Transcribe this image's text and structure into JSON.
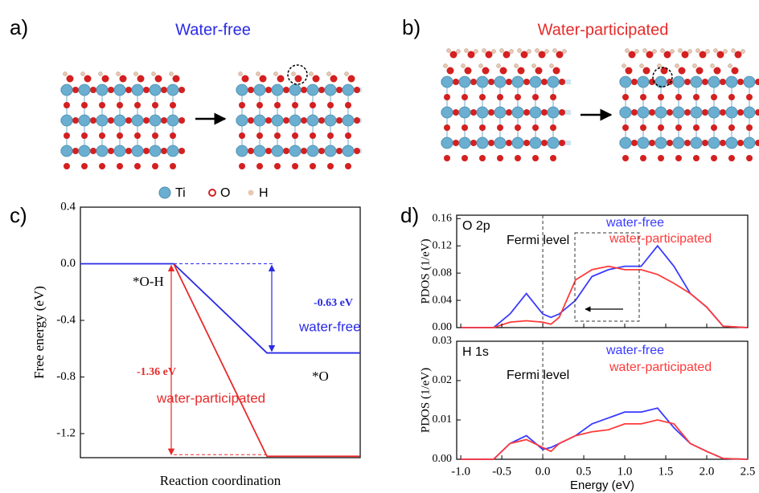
{
  "figure": {
    "panel_labels": [
      "a)",
      "b)",
      "c)",
      "d)"
    ],
    "structures": [
      {
        "title": "Water-free",
        "color": "#2a2ae6"
      },
      {
        "title": "Water-participated",
        "color": "#e62a2a"
      }
    ],
    "atom_legend": [
      {
        "label": "Ti",
        "color": "#6aaed0"
      },
      {
        "label": "O",
        "color": "#d42020"
      },
      {
        "label": "H",
        "color": "#e8c8b0"
      }
    ]
  },
  "chart_data": [
    {
      "type": "line",
      "xlabel": "Reaction coordination",
      "ylabel": "Free energy (eV)",
      "x": [
        0,
        1,
        2,
        3
      ],
      "xlim": [
        0,
        3
      ],
      "ylim": [
        -1.37,
        0.4
      ],
      "yticks": [
        0.4,
        {
          "value": 0,
          "label": "0.0"
        },
        -0.4,
        -0.8,
        -1.2
      ],
      "series": [
        {
          "name": "water-free",
          "color": "#2a2ae6",
          "values": [
            0,
            0,
            -0.63,
            -0.63
          ]
        },
        {
          "name": "water-participated",
          "color": "#e62a2a",
          "values": [
            null,
            0,
            -1.36,
            -1.36
          ]
        }
      ],
      "annotations": [
        "*O-H",
        "*O",
        "-0.63 eV",
        "water-free",
        "-1.36 eV",
        "water-participated"
      ]
    },
    {
      "type": "line",
      "ylabel": "PDOS (1/eV)",
      "fermi_level": 0,
      "x": [
        -1.0,
        -0.6,
        -0.4,
        -0.2,
        0,
        0.1,
        0.2,
        0.4,
        0.6,
        0.8,
        1.0,
        1.2,
        1.4,
        1.6,
        1.8,
        2.0,
        2.2,
        2.5
      ],
      "xlim": [
        -1.05,
        2.5
      ],
      "ylim": [
        0,
        0.165
      ],
      "yticks": [
        {
          "value": 0,
          "label": "0.00"
        },
        0.04,
        0.08,
        0.12,
        0.16
      ],
      "series": [
        {
          "name": "water-free",
          "color": "#3a3aff",
          "values": [
            0,
            0,
            0.02,
            0.05,
            0.02,
            0.015,
            0.02,
            0.04,
            0.075,
            0.085,
            0.09,
            0.09,
            0.12,
            0.09,
            0.05,
            0.03,
            0.002,
            0
          ]
        },
        {
          "name": "water-participated",
          "color": "#ff3a3a",
          "values": [
            0,
            0,
            0.008,
            0.01,
            0.008,
            0.005,
            0.015,
            0.07,
            0.085,
            0.09,
            0.085,
            0.085,
            0.078,
            0.065,
            0.05,
            0.03,
            0.002,
            0
          ]
        }
      ],
      "annotations": [
        "O 2p",
        "Fermi level",
        "water-free",
        "water-participated"
      ]
    },
    {
      "type": "line",
      "ylabel": "PDOS (1/eV)",
      "xlabel": "Energy (eV)",
      "fermi_level": 0,
      "x": [
        -1.0,
        -0.6,
        -0.4,
        -0.2,
        0,
        0.1,
        0.2,
        0.4,
        0.6,
        0.8,
        1.0,
        1.2,
        1.4,
        1.6,
        1.8,
        2.0,
        2.2,
        2.5
      ],
      "xlim": [
        -1.05,
        2.5
      ],
      "xticks": [
        {
          "value": -1,
          "label": "-1.0"
        },
        -0.5,
        {
          "value": 0,
          "label": "0.0"
        },
        0.5,
        {
          "value": 1,
          "label": "1.0"
        },
        1.5,
        {
          "value": 2,
          "label": "2.0"
        },
        2.5
      ],
      "ylim": [
        0,
        0.03
      ],
      "yticks": [
        {
          "value": 0,
          "label": "0.00"
        },
        0.01,
        0.02,
        0.03
      ],
      "series": [
        {
          "name": "water-free",
          "color": "#3a3aff",
          "values": [
            0,
            0,
            0.004,
            0.006,
            0.0025,
            0.003,
            0.004,
            0.006,
            0.009,
            0.0105,
            0.012,
            0.012,
            0.013,
            0.008,
            0.004,
            0.002,
            0.0002,
            0
          ]
        },
        {
          "name": "water-participated",
          "color": "#ff3a3a",
          "values": [
            0,
            0,
            0.004,
            0.005,
            0.003,
            0.002,
            0.004,
            0.006,
            0.007,
            0.0075,
            0.009,
            0.009,
            0.01,
            0.009,
            0.004,
            0.002,
            0.0002,
            0
          ]
        }
      ],
      "annotations": [
        "H 1s",
        "Fermi level",
        "water-free",
        "water-participated"
      ]
    }
  ]
}
